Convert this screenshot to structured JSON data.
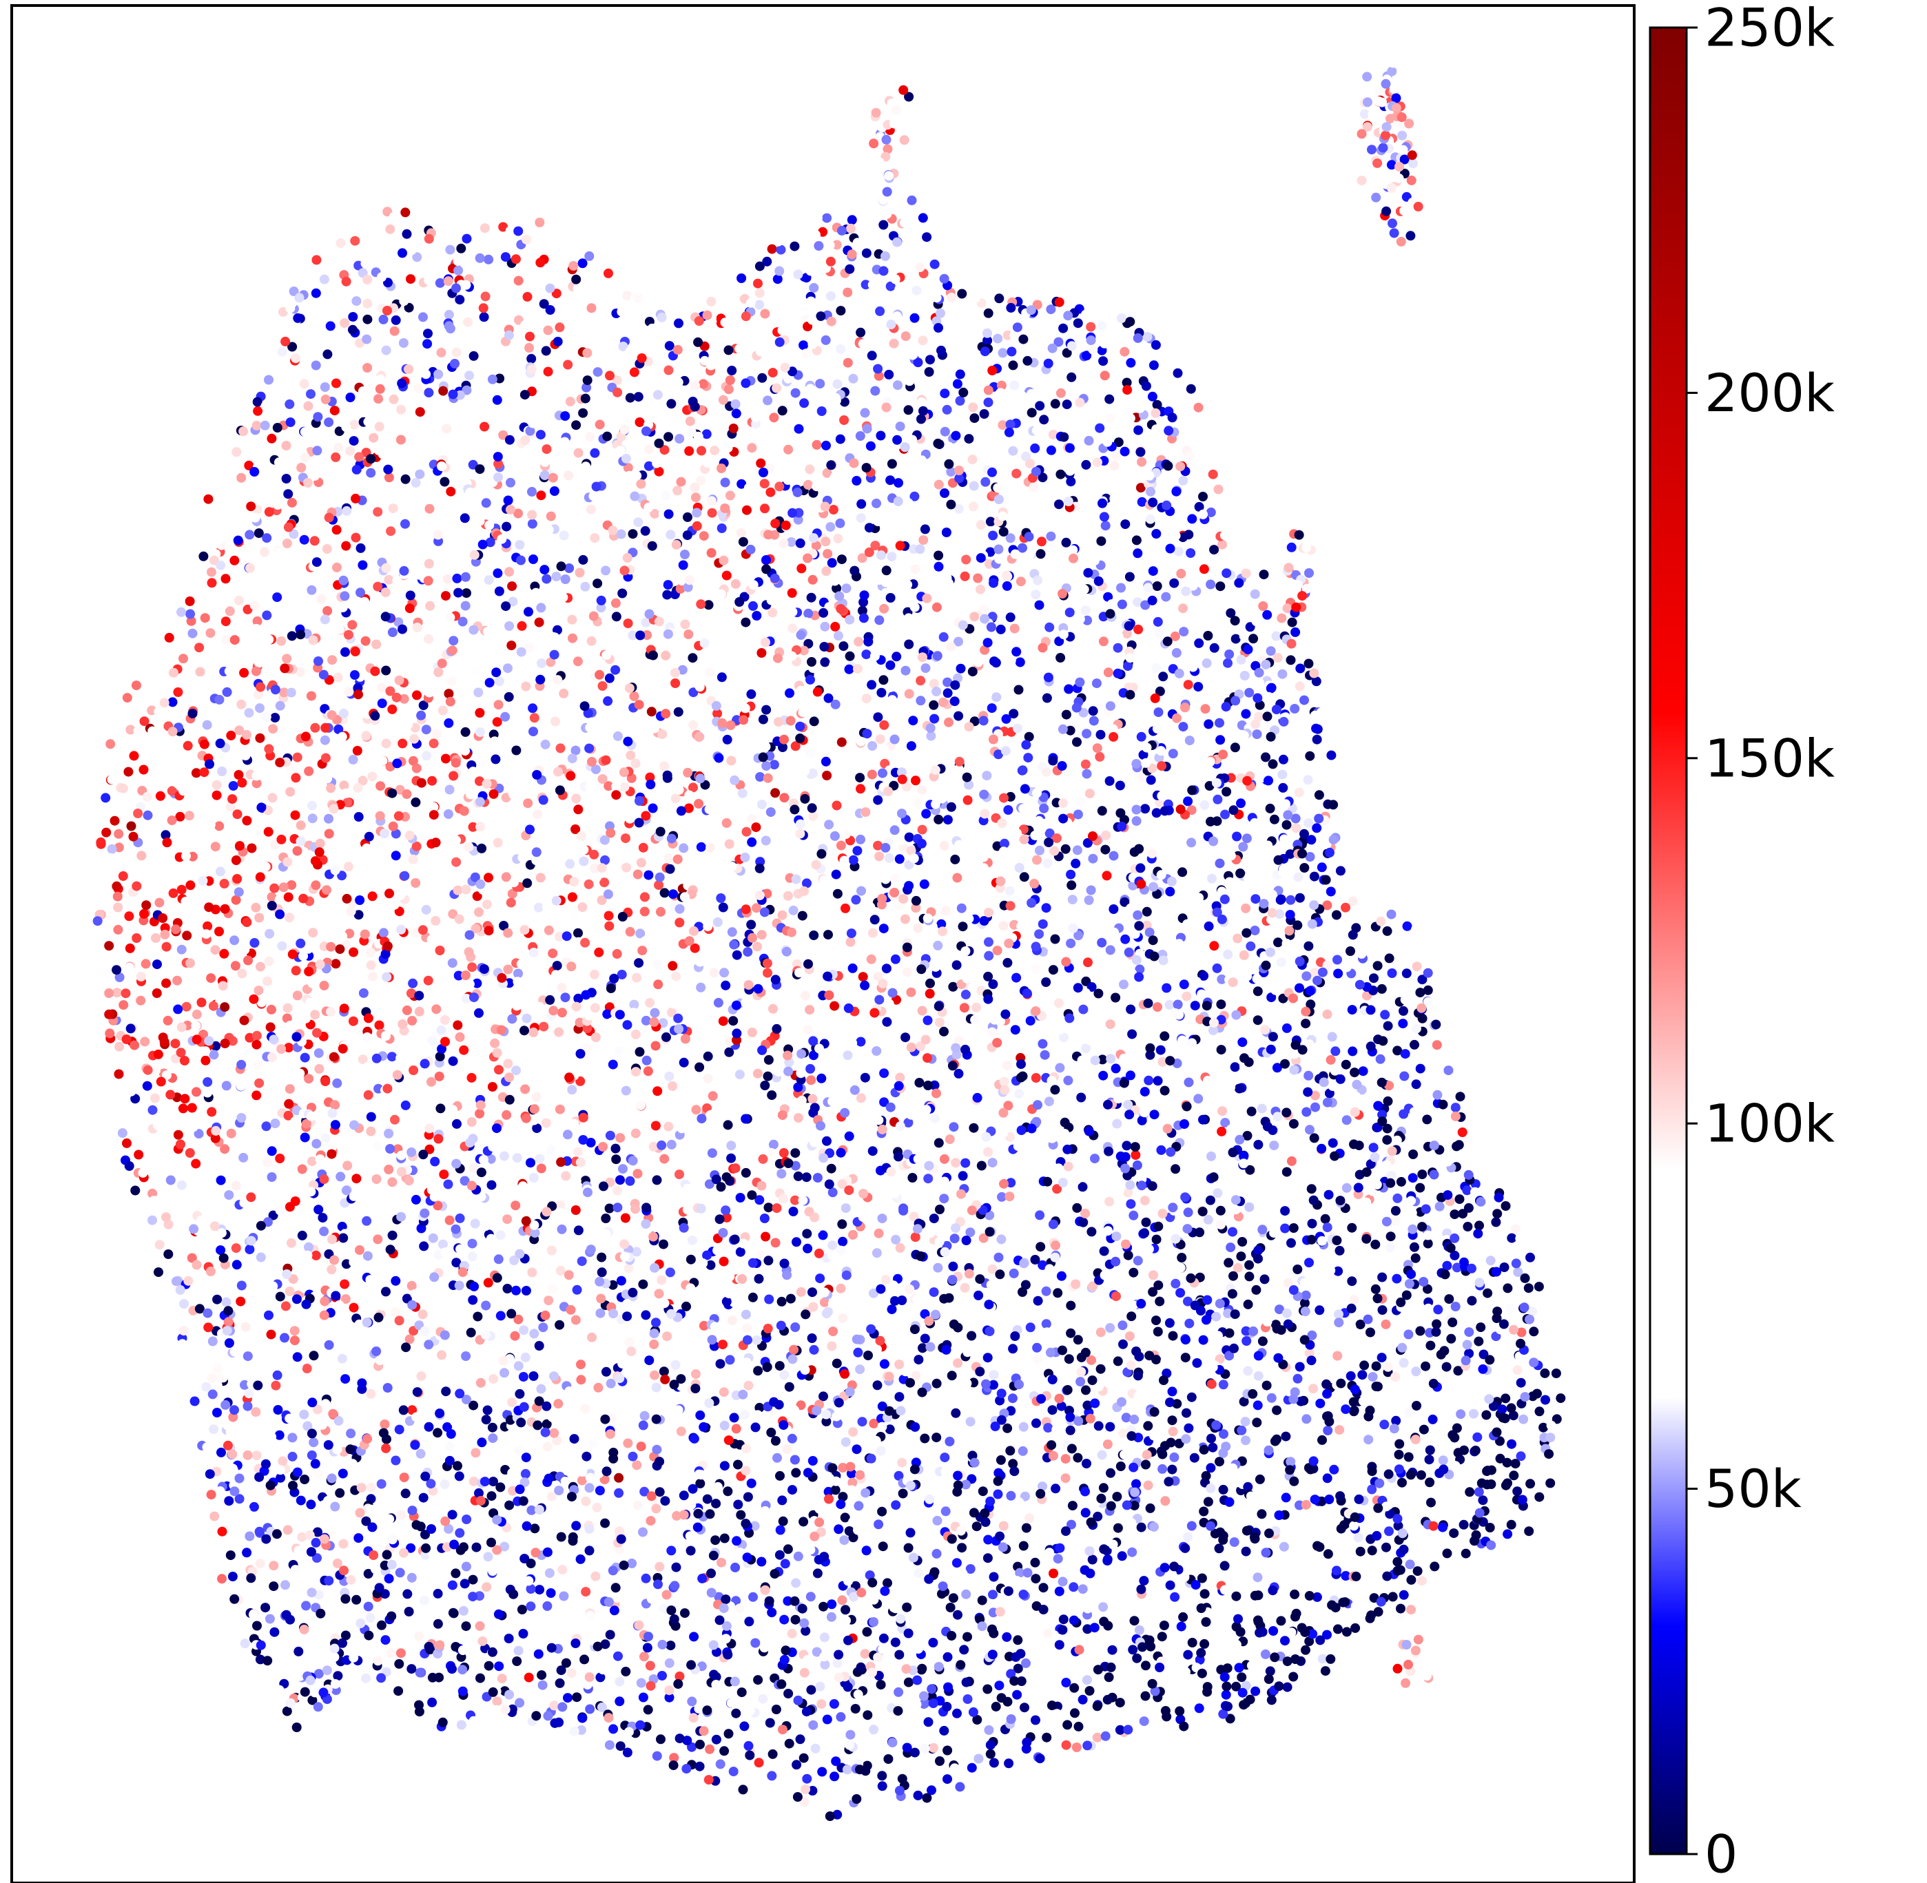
{
  "chart_data": {
    "type": "scatter",
    "title": "",
    "xlabel": "",
    "ylabel": "",
    "axes_ticks_visible": false,
    "grid": false,
    "point_count_approx": 9000,
    "point_color_scale": "blue-white-red (seismic)",
    "regions": [
      {
        "description": "left lobe",
        "value_mean": 120000
      },
      {
        "description": "upper center",
        "value_mean": 100000
      },
      {
        "description": "lower right",
        "value_mean": 30000
      },
      {
        "description": "bottom center",
        "value_mean": 40000
      }
    ],
    "colorbar": {
      "min": 0,
      "max": 250000,
      "colors": [
        "#00004c",
        "#0000ff",
        "#ffffff",
        "#ff0000",
        "#800000"
      ],
      "ticks": [
        {
          "value": 0,
          "label": "0"
        },
        {
          "value": 50000,
          "label": "50k"
        },
        {
          "value": 100000,
          "label": "100k"
        },
        {
          "value": 150000,
          "label": "150k"
        },
        {
          "value": 200000,
          "label": "200k"
        },
        {
          "value": 250000,
          "label": "250k"
        }
      ]
    }
  }
}
